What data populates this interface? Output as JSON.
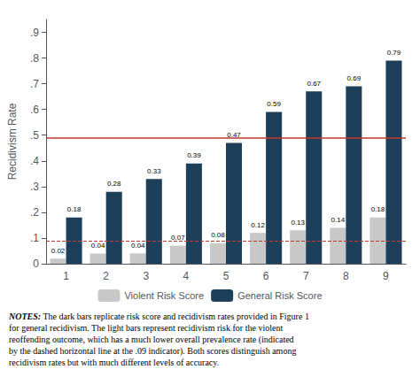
{
  "chart_data": {
    "type": "bar",
    "categories": [
      1,
      2,
      3,
      4,
      5,
      6,
      7,
      8,
      9
    ],
    "series": [
      {
        "name": "Violent Risk Score",
        "color": "#c8c8c8",
        "values": [
          0.02,
          0.04,
          0.04,
          0.07,
          0.08,
          0.12,
          0.13,
          0.14,
          0.18
        ]
      },
      {
        "name": "General Risk Score",
        "color": "#1e3f5a",
        "values": [
          0.18,
          0.28,
          0.33,
          0.39,
          0.47,
          0.59,
          0.67,
          0.69,
          0.79
        ]
      }
    ],
    "ylabel": "Recidivism Rate",
    "ylim": [
      0,
      0.95
    ],
    "yticks": [
      0,
      {
        "value": 0.1,
        "label": ".1"
      },
      {
        "value": 0.2,
        "label": ".2"
      },
      {
        "value": 0.3,
        "label": ".3"
      },
      {
        "value": 0.4,
        "label": ".4"
      },
      {
        "value": 0.5,
        "label": ".5"
      },
      {
        "value": 0.6,
        "label": ".6"
      },
      {
        "value": 0.7,
        "label": ".7"
      },
      {
        "value": 0.8,
        "label": ".8"
      },
      {
        "value": 0.9,
        "label": ".9"
      }
    ],
    "data_labels": true,
    "grid": false,
    "legend": "bottom",
    "reference_lines": [
      {
        "y": 0.49,
        "color": "#c0392b",
        "line_style": "solid"
      },
      {
        "y": 0.09,
        "color": "#c0392b",
        "line_style": "dashed"
      }
    ],
    "notes": [
      "NOTES:",
      " The dark bars replicate risk score and recidivism rates provided in Figure 1\nfor general recidivism. The light bars represent recidivism risk for the violent\nreoffending outcome, which has a much lower overall prevalence rate (indicated\nby the dashed horizontal line at the .09 indicator). Both scores distinguish among\nrecidivism rates but with much different levels of accuracy."
    ]
  }
}
